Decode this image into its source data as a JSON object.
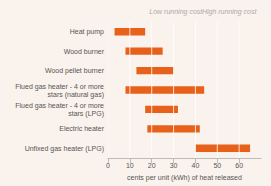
{
  "chart_data": {
    "type": "bar",
    "orientation": "horizontal",
    "categories": [
      "Unfixed gas heater (LPG)",
      "Electric heater",
      "Flued gas heater - 4 or more\nstars (LPG)",
      "Flued gas heater - 4 or more\nstars (natural gas)",
      "Wood pellet burner",
      "Wood burner",
      "Heat pump"
    ],
    "values": [
      [
        40,
        65
      ],
      [
        18,
        42
      ],
      [
        17,
        32
      ],
      [
        8,
        44
      ],
      [
        13,
        30
      ],
      [
        8,
        25
      ],
      [
        3,
        17
      ]
    ],
    "color": "#e8611a",
    "xlabel": "cents per unit (kWh) of heat released",
    "annotations": [
      "Low running cost",
      "High running cost"
    ],
    "xlim": [
      0,
      70
    ],
    "xticks": [
      0,
      10,
      20,
      30,
      40,
      50,
      60
    ],
    "grid": true
  }
}
